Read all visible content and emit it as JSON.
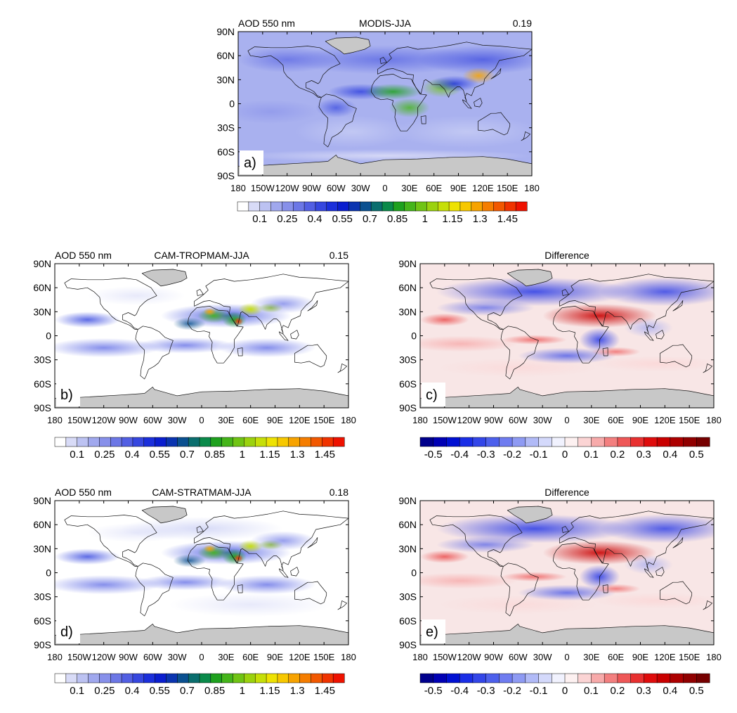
{
  "figure": {
    "panels": [
      {
        "id": "a",
        "letter": "a)",
        "left_title": "AOD 550 nm",
        "center_title": "MODIS-JJA",
        "right_value": "0.19",
        "scale": "aod"
      },
      {
        "id": "b",
        "letter": "b)",
        "left_title": "AOD 550 nm",
        "center_title": "CAM-TROPMAM-JJA",
        "right_value": "0.15",
        "scale": "aod"
      },
      {
        "id": "c",
        "letter": "c)",
        "left_title": "",
        "center_title": "Difference",
        "right_value": "",
        "scale": "diff"
      },
      {
        "id": "d",
        "letter": "d)",
        "left_title": "AOD 550 nm",
        "center_title": "CAM-STRATMAM-JJA",
        "right_value": "0.18",
        "scale": "aod"
      },
      {
        "id": "e",
        "letter": "e)",
        "left_title": "",
        "center_title": "Difference",
        "right_value": "",
        "scale": "diff"
      }
    ],
    "lat_ticks": [
      "90N",
      "60N",
      "30N",
      "0",
      "30S",
      "60S",
      "90S"
    ],
    "lon_ticks": [
      "180",
      "150W",
      "120W",
      "90W",
      "60W",
      "30W",
      "0",
      "30E",
      "60E",
      "90E",
      "120E",
      "150E",
      "180"
    ],
    "aod_scale": {
      "labels": [
        "0.1",
        "0.25",
        "0.4",
        "0.55",
        "0.7",
        "0.85",
        "1",
        "1.15",
        "1.3",
        "1.45"
      ],
      "colors": [
        "#ffffff",
        "#d8dbf7",
        "#bcc2f2",
        "#a0a8ee",
        "#8790ea",
        "#6c77e6",
        "#525fe3",
        "#3647df",
        "#1b2fdb",
        "#0a1ecf",
        "#0a34b0",
        "#0a5090",
        "#0a6e6e",
        "#0a8a4a",
        "#1ea11e",
        "#45b51a",
        "#70c414",
        "#9bd20e",
        "#c6df08",
        "#eee202",
        "#f7c800",
        "#f7a300",
        "#f57d00",
        "#f25800",
        "#f03300",
        "#ee1200"
      ]
    },
    "diff_scale": {
      "labels": [
        "-0.5",
        "-0.4",
        "-0.3",
        "-0.2",
        "-0.1",
        "0",
        "0.1",
        "0.2",
        "0.3",
        "0.4",
        "0.5"
      ],
      "colors": [
        "#00008c",
        "#0000b4",
        "#0010d2",
        "#1a2ee6",
        "#3346e8",
        "#4d60ec",
        "#6f7cf0",
        "#8e9af3",
        "#b1baf7",
        "#d4d9fb",
        "#f1f2fe",
        "#fdf1f1",
        "#fbd4d4",
        "#f7aaaa",
        "#f37f7f",
        "#ee5757",
        "#e83030",
        "#df0c0c",
        "#c90000",
        "#ad0000",
        "#900000",
        "#760000"
      ]
    }
  }
}
